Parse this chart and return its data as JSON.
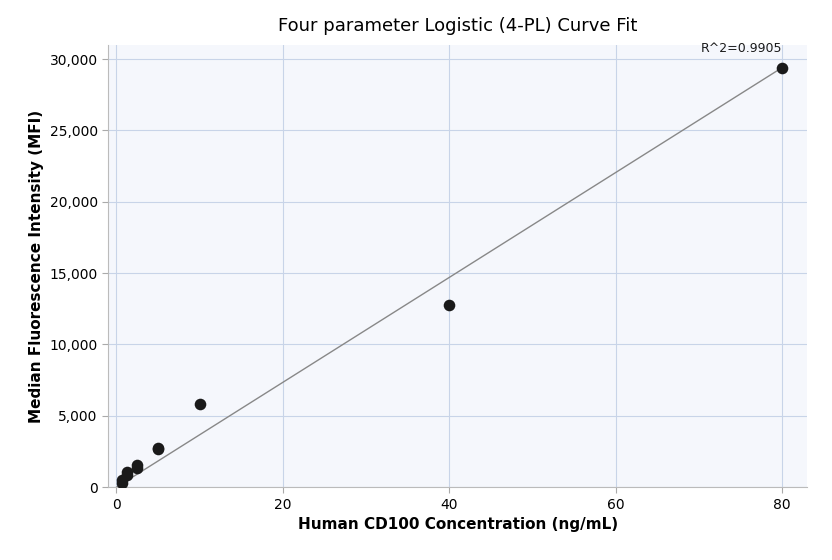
{
  "title": "Four parameter Logistic (4-PL) Curve Fit",
  "xlabel": "Human CD100 Concentration (ng/mL)",
  "ylabel": "Median Fluorescence Intensity (MFI)",
  "scatter_x": [
    0.625,
    0.625,
    1.25,
    1.25,
    2.5,
    2.5,
    5.0,
    5.0,
    10.0,
    40.0,
    80.0
  ],
  "scatter_y": [
    280,
    480,
    850,
    1050,
    1350,
    1550,
    2650,
    2750,
    5850,
    12800,
    29400
  ],
  "line_x": [
    0,
    80
  ],
  "line_y": [
    0,
    29400
  ],
  "r_squared_text": "R^2=0.9905",
  "r_squared_x": 80,
  "r_squared_y": 30300,
  "xlim": [
    -1,
    83
  ],
  "ylim": [
    0,
    31000
  ],
  "xticks": [
    0,
    20,
    40,
    60,
    80
  ],
  "yticks": [
    0,
    5000,
    10000,
    15000,
    20000,
    25000,
    30000
  ],
  "ytick_labels": [
    "0",
    "5,000",
    "10,000",
    "15,000",
    "20,000",
    "25,000",
    "30,000"
  ],
  "scatter_color": "#1a1a1a",
  "line_color": "#888888",
  "grid_color": "#c8d4e8",
  "axes_bg_color": "#f5f7fc",
  "fig_bg_color": "#ffffff",
  "title_fontsize": 13,
  "label_fontsize": 11,
  "tick_fontsize": 10,
  "annotation_fontsize": 9
}
